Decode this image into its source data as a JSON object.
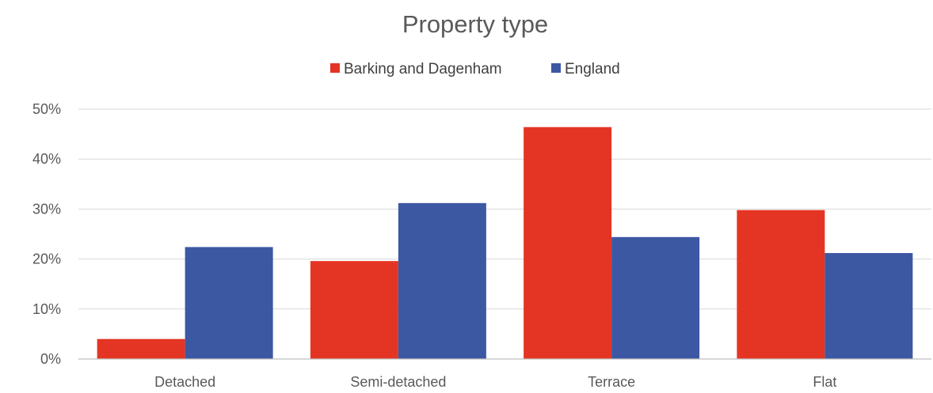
{
  "chart_data": {
    "type": "bar",
    "title": "Property type",
    "xlabel": "",
    "ylabel": "",
    "categories": [
      "Detached",
      "Semi-detached",
      "Terrace",
      "Flat"
    ],
    "series": [
      {
        "name": "Barking and Dagenham",
        "color": "#e43524",
        "values": [
          4.0,
          19.6,
          46.4,
          29.8
        ]
      },
      {
        "name": "England",
        "color": "#3c58a3",
        "values": [
          22.4,
          31.2,
          24.4,
          21.2
        ]
      }
    ],
    "ylim": [
      0,
      50
    ],
    "yticks": [
      "0%",
      "10%",
      "20%",
      "30%",
      "40%",
      "50%"
    ],
    "ytick_values": [
      0,
      10,
      20,
      30,
      40,
      50
    ],
    "grid": true,
    "legend_position": "top"
  }
}
